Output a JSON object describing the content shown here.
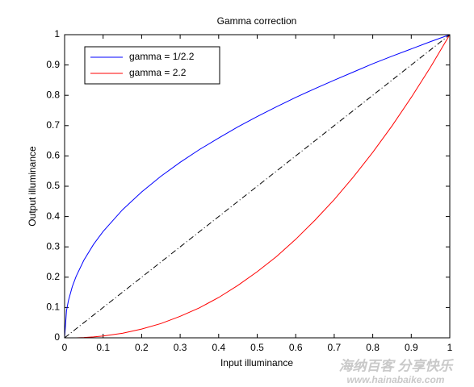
{
  "chart_data": {
    "type": "line",
    "title": "Gamma correction",
    "x_label": "Input illuminance",
    "y_label": "Output illuminance",
    "x": [
      0,
      0.005,
      0.01,
      0.02,
      0.03,
      0.05,
      0.075,
      0.1,
      0.15,
      0.2,
      0.25,
      0.3,
      0.35,
      0.4,
      0.45,
      0.5,
      0.55,
      0.6,
      0.65,
      0.7,
      0.75,
      0.8,
      0.85,
      0.9,
      0.95,
      1
    ],
    "series": [
      {
        "name": "gamma = 1/2.2",
        "color": "#0000ff",
        "linestyle": "solid",
        "values": [
          0,
          0.09,
          0.123,
          0.169,
          0.203,
          0.256,
          0.308,
          0.351,
          0.422,
          0.481,
          0.533,
          0.579,
          0.621,
          0.659,
          0.696,
          0.73,
          0.762,
          0.793,
          0.822,
          0.85,
          0.877,
          0.904,
          0.929,
          0.953,
          0.977,
          1
        ]
      },
      {
        "name": "gamma = 2.2",
        "color": "#ff0000",
        "linestyle": "solid",
        "values": [
          0,
          0,
          0,
          0,
          0,
          0.001,
          0.003,
          0.006,
          0.015,
          0.029,
          0.047,
          0.071,
          0.099,
          0.133,
          0.173,
          0.218,
          0.268,
          0.325,
          0.388,
          0.456,
          0.531,
          0.612,
          0.699,
          0.793,
          0.893,
          1
        ]
      },
      {
        "color": "#000000",
        "linestyle": "dashdot",
        "values": [
          0,
          0.005,
          0.01,
          0.02,
          0.03,
          0.05,
          0.075,
          0.1,
          0.15,
          0.2,
          0.25,
          0.3,
          0.35,
          0.4,
          0.45,
          0.5,
          0.55,
          0.6,
          0.65,
          0.7,
          0.75,
          0.8,
          0.85,
          0.9,
          0.95,
          1
        ]
      }
    ],
    "xlim": [
      0,
      1
    ],
    "ylim": [
      0,
      1
    ],
    "xticks": [
      0,
      0.1,
      0.2,
      0.3,
      0.4,
      0.5,
      0.6,
      0.7,
      0.8,
      0.9,
      1
    ],
    "yticks": [
      0,
      0.1,
      0.2,
      0.3,
      0.4,
      0.5,
      0.6,
      0.7,
      0.8,
      0.9,
      1
    ],
    "grid": false,
    "legend": "upper left"
  },
  "watermark": {
    "slogan": "海纳百客 分享快乐",
    "url": "www.hainabaike.com"
  }
}
